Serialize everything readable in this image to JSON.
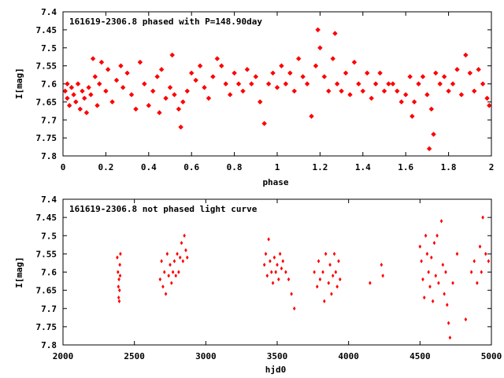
{
  "chart_data": [
    {
      "type": "scatter",
      "title": "161619-2306.8 phased with P=148.90day",
      "xlabel": "phase",
      "ylabel": "I[mag]",
      "xlim": [
        0,
        2
      ],
      "ylim": [
        7.8,
        7.4
      ],
      "y_inverted": true,
      "grid": false,
      "marker_color": "#ff0000",
      "x_ticks": [
        "0",
        "0.2",
        "0.4",
        "0.6",
        "0.8",
        "1",
        "1.2",
        "1.4",
        "1.6",
        "1.8",
        "2"
      ],
      "y_ticks": [
        "7.4",
        "7.45",
        "7.5",
        "7.55",
        "7.6",
        "7.65",
        "7.7",
        "7.75",
        "7.8"
      ],
      "series": [
        {
          "points": [
            [
              0.01,
              7.62
            ],
            [
              0.02,
              7.6
            ],
            [
              0.02,
              7.64
            ],
            [
              0.03,
              7.66
            ],
            [
              0.04,
              7.61
            ],
            [
              0.05,
              7.63
            ],
            [
              0.06,
              7.65
            ],
            [
              0.07,
              7.6
            ],
            [
              0.08,
              7.67
            ],
            [
              0.09,
              7.62
            ],
            [
              0.1,
              7.64
            ],
            [
              0.11,
              7.68
            ],
            [
              0.12,
              7.61
            ],
            [
              0.13,
              7.63
            ],
            [
              0.14,
              7.53
            ],
            [
              0.15,
              7.58
            ],
            [
              0.16,
              7.66
            ],
            [
              0.17,
              7.6
            ],
            [
              0.18,
              7.54
            ],
            [
              0.2,
              7.62
            ],
            [
              0.21,
              7.56
            ],
            [
              0.23,
              7.65
            ],
            [
              0.25,
              7.59
            ],
            [
              0.27,
              7.55
            ],
            [
              0.28,
              7.61
            ],
            [
              0.3,
              7.57
            ],
            [
              0.32,
              7.63
            ],
            [
              0.34,
              7.67
            ],
            [
              0.36,
              7.54
            ],
            [
              0.38,
              7.6
            ],
            [
              0.4,
              7.66
            ],
            [
              0.42,
              7.62
            ],
            [
              0.44,
              7.58
            ],
            [
              0.45,
              7.68
            ],
            [
              0.46,
              7.56
            ],
            [
              0.48,
              7.64
            ],
            [
              0.5,
              7.61
            ],
            [
              0.51,
              7.52
            ],
            [
              0.52,
              7.63
            ],
            [
              0.54,
              7.67
            ],
            [
              0.55,
              7.72
            ],
            [
              0.56,
              7.65
            ],
            [
              0.58,
              7.62
            ],
            [
              0.6,
              7.57
            ],
            [
              0.62,
              7.59
            ],
            [
              0.64,
              7.55
            ],
            [
              0.66,
              7.61
            ],
            [
              0.68,
              7.64
            ],
            [
              0.7,
              7.58
            ],
            [
              0.72,
              7.53
            ],
            [
              0.74,
              7.55
            ],
            [
              0.76,
              7.6
            ],
            [
              0.78,
              7.63
            ],
            [
              0.8,
              7.57
            ],
            [
              0.82,
              7.6
            ],
            [
              0.84,
              7.62
            ],
            [
              0.86,
              7.56
            ],
            [
              0.88,
              7.6
            ],
            [
              0.9,
              7.58
            ],
            [
              0.92,
              7.65
            ],
            [
              0.94,
              7.71
            ],
            [
              0.96,
              7.6
            ],
            [
              0.98,
              7.57
            ],
            [
              1.0,
              7.61
            ],
            [
              1.02,
              7.55
            ],
            [
              1.04,
              7.6
            ],
            [
              1.06,
              7.57
            ],
            [
              1.08,
              7.62
            ],
            [
              1.1,
              7.53
            ],
            [
              1.12,
              7.58
            ],
            [
              1.14,
              7.6
            ],
            [
              1.16,
              7.69
            ],
            [
              1.18,
              7.55
            ],
            [
              1.19,
              7.45
            ],
            [
              1.2,
              7.5
            ],
            [
              1.22,
              7.58
            ],
            [
              1.24,
              7.62
            ],
            [
              1.26,
              7.53
            ],
            [
              1.27,
              7.46
            ],
            [
              1.28,
              7.6
            ],
            [
              1.3,
              7.62
            ],
            [
              1.32,
              7.57
            ],
            [
              1.34,
              7.63
            ],
            [
              1.36,
              7.54
            ],
            [
              1.38,
              7.6
            ],
            [
              1.4,
              7.62
            ],
            [
              1.42,
              7.57
            ],
            [
              1.44,
              7.64
            ],
            [
              1.46,
              7.6
            ],
            [
              1.48,
              7.57
            ],
            [
              1.5,
              7.62
            ],
            [
              1.52,
              7.6
            ],
            [
              1.54,
              7.6
            ],
            [
              1.56,
              7.62
            ],
            [
              1.58,
              7.65
            ],
            [
              1.6,
              7.63
            ],
            [
              1.62,
              7.58
            ],
            [
              1.63,
              7.69
            ],
            [
              1.64,
              7.65
            ],
            [
              1.66,
              7.6
            ],
            [
              1.68,
              7.58
            ],
            [
              1.7,
              7.63
            ],
            [
              1.71,
              7.78
            ],
            [
              1.72,
              7.67
            ],
            [
              1.73,
              7.74
            ],
            [
              1.74,
              7.57
            ],
            [
              1.76,
              7.6
            ],
            [
              1.78,
              7.58
            ],
            [
              1.8,
              7.62
            ],
            [
              1.82,
              7.6
            ],
            [
              1.84,
              7.56
            ],
            [
              1.86,
              7.63
            ],
            [
              1.88,
              7.52
            ],
            [
              1.9,
              7.57
            ],
            [
              1.92,
              7.62
            ],
            [
              1.94,
              7.56
            ],
            [
              1.96,
              7.6
            ],
            [
              1.98,
              7.64
            ],
            [
              1.99,
              7.66
            ]
          ]
        }
      ]
    },
    {
      "type": "scatter",
      "title": "161619-2306.8 not phased light curve",
      "xlabel": "hjd0",
      "ylabel": "I[mag]",
      "xlim": [
        2000,
        5000
      ],
      "ylim": [
        7.8,
        7.4
      ],
      "y_inverted": true,
      "grid": false,
      "marker_color": "#ff0000",
      "x_ticks": [
        "2000",
        "2500",
        "3000",
        "3500",
        "4000",
        "4500",
        "5000"
      ],
      "y_ticks": [
        "7.4",
        "7.45",
        "7.5",
        "7.55",
        "7.6",
        "7.65",
        "7.7",
        "7.75",
        "7.8"
      ],
      "series": [
        {
          "points": [
            [
              2380,
              7.56
            ],
            [
              2385,
              7.6
            ],
            [
              2388,
              7.64
            ],
            [
              2390,
              7.67
            ],
            [
              2392,
              7.62
            ],
            [
              2394,
              7.68
            ],
            [
              2396,
              7.65
            ],
            [
              2398,
              7.58
            ],
            [
              2400,
              7.61
            ],
            [
              2402,
              7.55
            ],
            [
              2680,
              7.62
            ],
            [
              2690,
              7.57
            ],
            [
              2700,
              7.64
            ],
            [
              2710,
              7.6
            ],
            [
              2720,
              7.66
            ],
            [
              2730,
              7.55
            ],
            [
              2740,
              7.61
            ],
            [
              2750,
              7.58
            ],
            [
              2760,
              7.63
            ],
            [
              2770,
              7.6
            ],
            [
              2780,
              7.57
            ],
            [
              2790,
              7.61
            ],
            [
              2800,
              7.55
            ],
            [
              2810,
              7.6
            ],
            [
              2820,
              7.56
            ],
            [
              2830,
              7.52
            ],
            [
              2840,
              7.57
            ],
            [
              2850,
              7.5
            ],
            [
              2860,
              7.54
            ],
            [
              2870,
              7.56
            ],
            [
              3410,
              7.58
            ],
            [
              3420,
              7.55
            ],
            [
              3430,
              7.61
            ],
            [
              3440,
              7.51
            ],
            [
              3450,
              7.57
            ],
            [
              3460,
              7.6
            ],
            [
              3470,
              7.63
            ],
            [
              3480,
              7.56
            ],
            [
              3490,
              7.6
            ],
            [
              3500,
              7.58
            ],
            [
              3510,
              7.62
            ],
            [
              3520,
              7.55
            ],
            [
              3530,
              7.59
            ],
            [
              3540,
              7.57
            ],
            [
              3560,
              7.6
            ],
            [
              3580,
              7.62
            ],
            [
              3600,
              7.66
            ],
            [
              3620,
              7.7
            ],
            [
              3760,
              7.6
            ],
            [
              3780,
              7.64
            ],
            [
              3790,
              7.57
            ],
            [
              3800,
              7.62
            ],
            [
              3820,
              7.6
            ],
            [
              3830,
              7.68
            ],
            [
              3840,
              7.55
            ],
            [
              3860,
              7.63
            ],
            [
              3870,
              7.58
            ],
            [
              3880,
              7.66
            ],
            [
              3890,
              7.61
            ],
            [
              3900,
              7.55
            ],
            [
              3910,
              7.6
            ],
            [
              3920,
              7.64
            ],
            [
              3930,
              7.57
            ],
            [
              3940,
              7.62
            ],
            [
              4150,
              7.63
            ],
            [
              4230,
              7.58
            ],
            [
              4240,
              7.61
            ],
            [
              4500,
              7.53
            ],
            [
              4510,
              7.57
            ],
            [
              4520,
              7.62
            ],
            [
              4530,
              7.67
            ],
            [
              4540,
              7.5
            ],
            [
              4550,
              7.55
            ],
            [
              4560,
              7.6
            ],
            [
              4570,
              7.64
            ],
            [
              4580,
              7.56
            ],
            [
              4590,
              7.68
            ],
            [
              4600,
              7.52
            ],
            [
              4610,
              7.61
            ],
            [
              4620,
              7.5
            ],
            [
              4630,
              7.63
            ],
            [
              4650,
              7.46
            ],
            [
              4660,
              7.58
            ],
            [
              4670,
              7.66
            ],
            [
              4680,
              7.6
            ],
            [
              4690,
              7.69
            ],
            [
              4700,
              7.74
            ],
            [
              4710,
              7.78
            ],
            [
              4730,
              7.63
            ],
            [
              4760,
              7.55
            ],
            [
              4820,
              7.73
            ],
            [
              4860,
              7.6
            ],
            [
              4880,
              7.57
            ],
            [
              4900,
              7.63
            ],
            [
              4920,
              7.53
            ],
            [
              4930,
              7.6
            ],
            [
              4940,
              7.45
            ],
            [
              4960,
              7.55
            ],
            [
              4980,
              7.57
            ]
          ]
        }
      ]
    }
  ]
}
